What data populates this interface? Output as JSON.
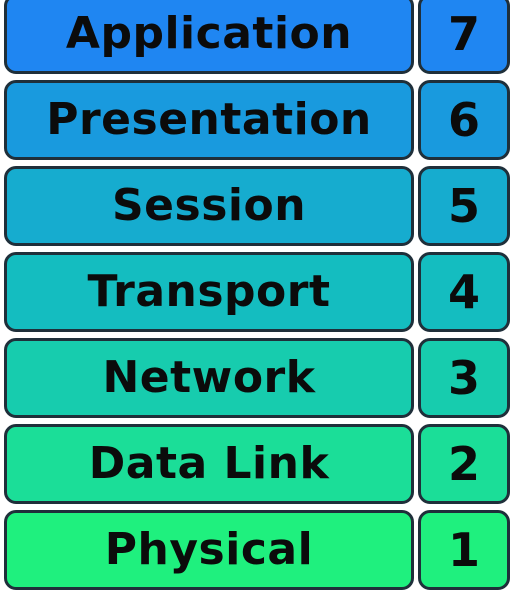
{
  "layers": [
    {
      "name": "Application",
      "number": "7",
      "color": "#1f86f2"
    },
    {
      "name": "Presentation",
      "number": "6",
      "color": "#199ade"
    },
    {
      "name": "Session",
      "number": "5",
      "color": "#16accf"
    },
    {
      "name": "Transport",
      "number": "4",
      "color": "#14bdc0"
    },
    {
      "name": "Network",
      "number": "3",
      "color": "#17ccae"
    },
    {
      "name": "Data Link",
      "number": "2",
      "color": "#1bde98"
    },
    {
      "name": "Physical",
      "number": "1",
      "color": "#1ff07e"
    }
  ]
}
